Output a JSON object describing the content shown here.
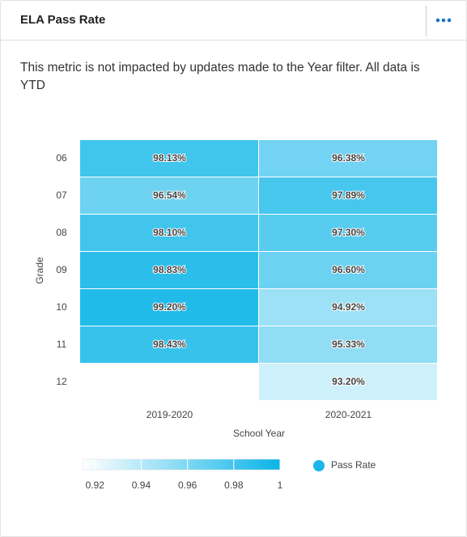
{
  "header": {
    "title": "ELA Pass Rate"
  },
  "description": "This metric is not impacted by updates made to the Year filter. All data is YTD",
  "chart_data": {
    "type": "heatmap",
    "x_categories": [
      "2019-2020",
      "2020-2021"
    ],
    "y_categories": [
      "06",
      "07",
      "08",
      "09",
      "10",
      "11",
      "12"
    ],
    "values": [
      [
        0.9813,
        0.9638
      ],
      [
        0.9654,
        0.9789
      ],
      [
        0.981,
        0.973
      ],
      [
        0.9883,
        0.966
      ],
      [
        0.992,
        0.9492
      ],
      [
        0.9843,
        0.9533
      ],
      [
        null,
        0.932
      ]
    ],
    "value_labels": [
      [
        "98.13%",
        "96.38%"
      ],
      [
        "96.54%",
        "97.89%"
      ],
      [
        "98.10%",
        "97.30%"
      ],
      [
        "98.83%",
        "96.60%"
      ],
      [
        "99.20%",
        "94.92%"
      ],
      [
        "98.43%",
        "95.33%"
      ],
      [
        null,
        "93.20%"
      ]
    ],
    "xlabel": "School Year",
    "ylabel": "Grade",
    "clim": [
      0.915,
      1
    ],
    "cticks": [
      0.92,
      0.94,
      0.96,
      0.98,
      1
    ],
    "colors": [
      "#ffffff",
      "#0ab4e8"
    ],
    "legend": {
      "name": "Pass Rate",
      "color": "#1ab6ea"
    }
  }
}
